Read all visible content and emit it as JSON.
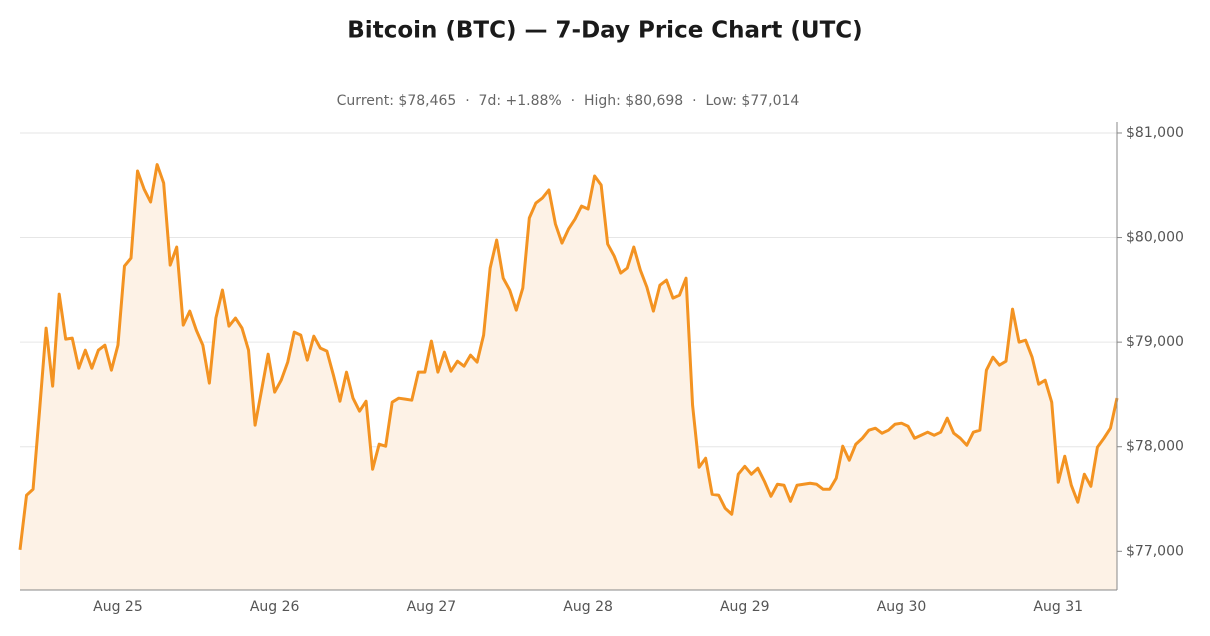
{
  "chart_data": {
    "type": "line",
    "title": "Bitcoin (BTC) — 7-Day Price Chart (UTC)",
    "subtitle": "Current: $78,465  ·  7d: +1.88%  ·  High: $80,698  ·  Low: $77,014",
    "categories": [
      null,
      null,
      null,
      null,
      null,
      null,
      null,
      null,
      null,
      null,
      null,
      null,
      null,
      null,
      null,
      "Aug 25",
      null,
      null,
      null,
      null,
      null,
      null,
      null,
      null,
      null,
      null,
      null,
      null,
      null,
      null,
      null,
      null,
      null,
      null,
      null,
      null,
      null,
      null,
      null,
      "Aug 26",
      null,
      null,
      null,
      null,
      null,
      null,
      null,
      null,
      null,
      null,
      null,
      null,
      null,
      null,
      null,
      null,
      null,
      null,
      null,
      null,
      null,
      null,
      null,
      "Aug 27",
      null,
      null,
      null,
      null,
      null,
      null,
      null,
      null,
      null,
      null,
      null,
      null,
      null,
      null,
      null,
      null,
      null,
      null,
      null,
      null,
      null,
      null,
      null,
      "Aug 28",
      null,
      null,
      null,
      null,
      null,
      null,
      null,
      null,
      null,
      null,
      null,
      null,
      null,
      null,
      null,
      null,
      null,
      null,
      null,
      null,
      null,
      null,
      null,
      "Aug 29",
      null,
      null,
      null,
      null,
      null,
      null,
      null,
      null,
      null,
      null,
      null,
      null,
      null,
      null,
      null,
      null,
      null,
      null,
      null,
      null,
      null,
      null,
      null,
      "Aug 30",
      null,
      null,
      null,
      null,
      null,
      null,
      null,
      null,
      null,
      null,
      null,
      null,
      null,
      null,
      null,
      null,
      null,
      null,
      null,
      null,
      null,
      null,
      null,
      "Aug 31",
      null,
      null,
      null,
      null,
      null,
      null,
      null,
      null,
      null
    ],
    "series": [
      {
        "name": "BTC",
        "color": "#f39322",
        "values": [
          77014,
          77536,
          77593,
          78350,
          79134,
          78579,
          79459,
          79029,
          79038,
          78751,
          78923,
          78751,
          78923,
          78971,
          78732,
          78971,
          79727,
          79804,
          80636,
          80464,
          80340,
          80698,
          80522,
          79737,
          79909,
          79163,
          79297,
          79115,
          78971,
          78608,
          79230,
          79498,
          79153,
          79230,
          79134,
          78923,
          78206,
          78541,
          78885,
          78522,
          78636,
          78809,
          79096,
          79067,
          78828,
          79057,
          78943,
          78914,
          78684,
          78435,
          78713,
          78464,
          78340,
          78435,
          77785,
          78024,
          78005,
          78426,
          78464,
          78455,
          78445,
          78713,
          78713,
          79010,
          78713,
          78904,
          78722,
          78818,
          78770,
          78876,
          78809,
          79067,
          79708,
          79976,
          79612,
          79498,
          79306,
          79517,
          80187,
          80330,
          80378,
          80455,
          80129,
          79947,
          80081,
          80177,
          80301,
          80273,
          80589,
          80502,
          79938,
          79823,
          79660,
          79708,
          79909,
          79689,
          79526,
          79297,
          79545,
          79593,
          79421,
          79450,
          79612,
          78397,
          77804,
          77890,
          77545,
          77536,
          77411,
          77354,
          77737,
          77813,
          77737,
          77794,
          77670,
          77526,
          77641,
          77632,
          77478,
          77632,
          77641,
          77651,
          77641,
          77593,
          77593,
          77699,
          78005,
          77871,
          78024,
          78081,
          78158,
          78177,
          78129,
          78158,
          78215,
          78225,
          78196,
          78081,
          78110,
          78139,
          78110,
          78139,
          78273,
          78129,
          78081,
          78014,
          78139,
          78158,
          78732,
          78856,
          78780,
          78818,
          79316,
          79000,
          79019,
          78856,
          78598,
          78636,
          78426,
          77660,
          77909,
          77632,
          77469,
          77737,
          77622,
          77995,
          78081,
          78177,
          78465
        ]
      }
    ],
    "ylim": [
      76630,
      81105
    ],
    "yticks": [
      {
        "value": 77000,
        "label": "$77,000"
      },
      {
        "value": 78000,
        "label": "$78,000"
      },
      {
        "value": 79000,
        "label": "$79,000"
      },
      {
        "value": 80000,
        "label": "$80,000"
      },
      {
        "value": 81000,
        "label": "$81,000"
      }
    ],
    "grid": true,
    "fill": "#fdf2e6"
  }
}
